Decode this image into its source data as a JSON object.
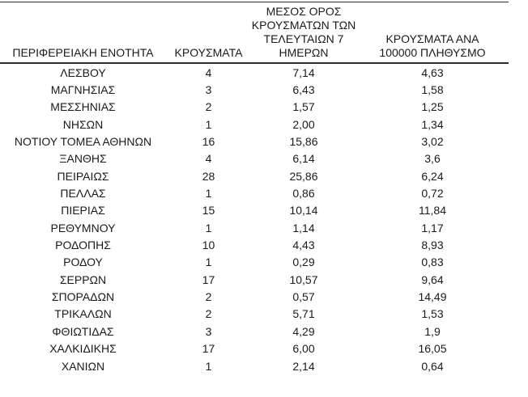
{
  "table": {
    "headers": {
      "region": "ΠΕΡΙΦΕΡΕΙΑΚΗ ΕΝΟΤΗΤΑ",
      "cases": "ΚΡΟΥΣΜΑΤΑ",
      "avg7_lines": [
        "ΜΕΣΟΣ ΟΡΟΣ",
        "ΚΡΟΥΣΜΑΤΩΝ ΤΩΝ",
        "ΤΕΛΕΥΤΑΙΩΝ 7",
        "ΗΜΕΡΩΝ"
      ],
      "per100k_lines": [
        "ΚΡΟΥΣΜΑΤΑ ΑΝΑ",
        "100000 ΠΛΗΘΥΣΜΟ"
      ]
    },
    "rows": [
      {
        "region": "ΛΕΣΒΟΥ",
        "cases": "4",
        "avg7": "7,14",
        "per100k": "4,63"
      },
      {
        "region": "ΜΑΓΝΗΣΙΑΣ",
        "cases": "3",
        "avg7": "6,43",
        "per100k": "1,58"
      },
      {
        "region": "ΜΕΣΣΗΝΙΑΣ",
        "cases": "2",
        "avg7": "1,57",
        "per100k": "1,25"
      },
      {
        "region": "ΝΗΣΩΝ",
        "cases": "1",
        "avg7": "2,00",
        "per100k": "1,34"
      },
      {
        "region": "ΝΟΤΙΟΥ ΤΟΜΕΑ ΑΘΗΝΩΝ",
        "cases": "16",
        "avg7": "15,86",
        "per100k": "3,02"
      },
      {
        "region": "ΞΑΝΘΗΣ",
        "cases": "4",
        "avg7": "6,14",
        "per100k": "3,6"
      },
      {
        "region": "ΠΕΙΡΑΙΩΣ",
        "cases": "28",
        "avg7": "25,86",
        "per100k": "6,24"
      },
      {
        "region": "ΠΕΛΛΑΣ",
        "cases": "1",
        "avg7": "0,86",
        "per100k": "0,72"
      },
      {
        "region": "ΠΙΕΡΙΑΣ",
        "cases": "15",
        "avg7": "10,14",
        "per100k": "11,84"
      },
      {
        "region": "ΡΕΘΥΜΝΟΥ",
        "cases": "1",
        "avg7": "1,14",
        "per100k": "1,17"
      },
      {
        "region": "ΡΟΔΟΠΗΣ",
        "cases": "10",
        "avg7": "4,43",
        "per100k": "8,93"
      },
      {
        "region": "ΡΟΔΟΥ",
        "cases": "1",
        "avg7": "0,29",
        "per100k": "0,83"
      },
      {
        "region": "ΣΕΡΡΩΝ",
        "cases": "17",
        "avg7": "10,57",
        "per100k": "9,64"
      },
      {
        "region": "ΣΠΟΡΑΔΩΝ",
        "cases": "2",
        "avg7": "0,57",
        "per100k": "14,49"
      },
      {
        "region": "ΤΡΙΚΑΛΩΝ",
        "cases": "2",
        "avg7": "5,71",
        "per100k": "1,53"
      },
      {
        "region": "ΦΘΙΩΤΙΔΑΣ",
        "cases": "3",
        "avg7": "4,29",
        "per100k": "1,9"
      },
      {
        "region": "ΧΑΛΚΙΔΙΚΗΣ",
        "cases": "17",
        "avg7": "6,00",
        "per100k": "16,05"
      },
      {
        "region": "ΧΑΝΙΩΝ",
        "cases": "1",
        "avg7": "2,14",
        "per100k": "0,64"
      }
    ]
  },
  "colors": {
    "text": "#1a1a1a",
    "line": "#2b2b2b",
    "background": "#ffffff"
  }
}
